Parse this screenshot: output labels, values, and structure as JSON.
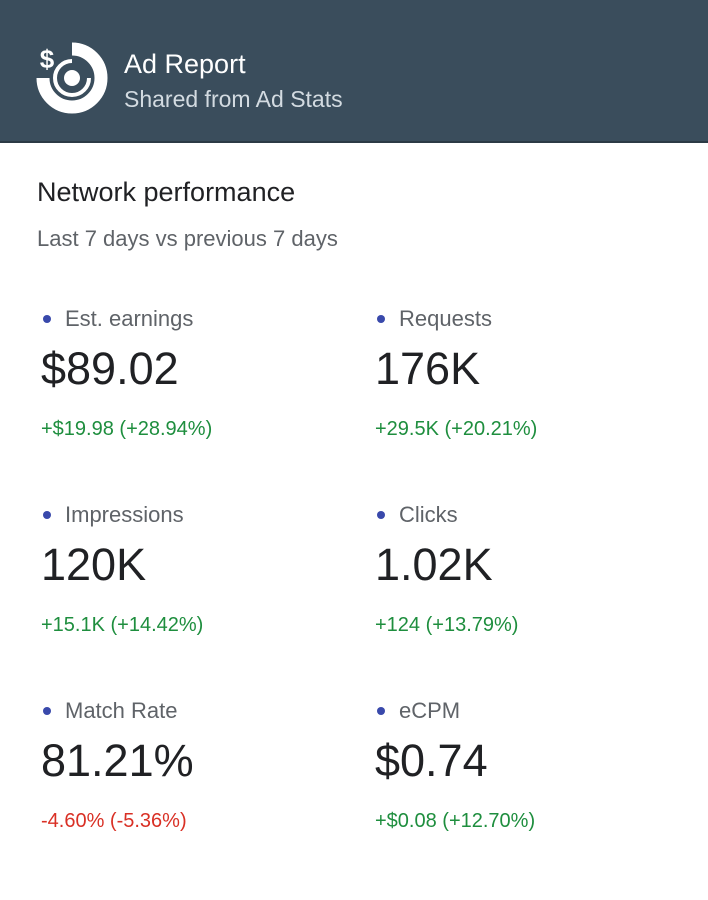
{
  "header": {
    "title": "Ad Report",
    "subtitle": "Shared from Ad Stats",
    "logo_icon": "dollar-target-icon",
    "background_color": "#3a4d5c"
  },
  "section": {
    "title": "Network performance",
    "subtitle": "Last 7 days vs previous 7 days"
  },
  "metrics": [
    {
      "label": "Est. earnings",
      "value": "$89.02",
      "change": "+$19.98 (+28.94%)",
      "trend": "up"
    },
    {
      "label": "Requests",
      "value": "176K",
      "change": "+29.5K (+20.21%)",
      "trend": "up"
    },
    {
      "label": "Impressions",
      "value": "120K",
      "change": "+15.1K (+14.42%)",
      "trend": "up"
    },
    {
      "label": "Clicks",
      "value": "1.02K",
      "change": "+124 (+13.79%)",
      "trend": "up"
    },
    {
      "label": "Match Rate",
      "value": "81.21%",
      "change": "-4.60% (-5.36%)",
      "trend": "down"
    },
    {
      "label": "eCPM",
      "value": "$0.74",
      "change": "+$0.08 (+12.70%)",
      "trend": "up"
    }
  ],
  "colors": {
    "positive": "#1e8e3e",
    "negative": "#d93025",
    "dot": "#3949ab"
  }
}
